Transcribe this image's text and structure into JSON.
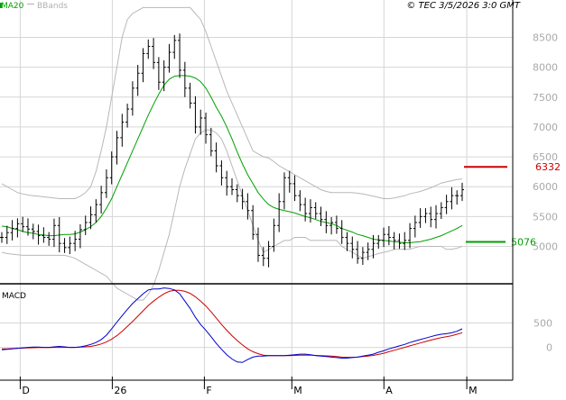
{
  "chart_data": [
    {
      "type": "line",
      "legend": [
        {
          "name": "MA20",
          "color": "#00a000"
        },
        {
          "name": "BBands",
          "color": "#b0b0b0"
        }
      ],
      "timestamp": "© TEC 3/5/2026 3:0 GMT",
      "x_ticks": [
        "D",
        "26",
        "F",
        "M",
        "A",
        "M"
      ],
      "y_ticks": [
        5000,
        5500,
        6000,
        6500,
        7000,
        7500,
        8000,
        8500
      ],
      "ylim": [
        4600,
        8900
      ],
      "grid": true,
      "series_style": "bar",
      "close": [
        5150,
        5230,
        5300,
        5380,
        5330,
        5290,
        5250,
        5180,
        5150,
        5120,
        5350,
        5050,
        4980,
        5050,
        5120,
        5280,
        5400,
        5530,
        5700,
        5900,
        6150,
        6500,
        6820,
        7080,
        7300,
        7650,
        7900,
        8230,
        8350,
        8080,
        7750,
        8000,
        8250,
        8450,
        7950,
        7650,
        7400,
        7000,
        7150,
        6870,
        6600,
        6350,
        6150,
        6000,
        5950,
        5850,
        5750,
        5600,
        5200,
        4850,
        4800,
        5000,
        5350,
        5750,
        6150,
        6050,
        5850,
        5700,
        5550,
        5650,
        5550,
        5450,
        5350,
        5400,
        5300,
        5150,
        5050,
        4950,
        4800,
        4900,
        4950,
        5050,
        5100,
        5200,
        5150,
        5100,
        5050,
        5100,
        5300,
        5400,
        5500,
        5550,
        5450,
        5550,
        5650,
        5750,
        5850,
        5850,
        5950
      ],
      "bbands_upper": [
        6050,
        6000,
        5950,
        5900,
        5880,
        5860,
        5850,
        5840,
        5830,
        5820,
        5810,
        5800,
        5800,
        5800,
        5800,
        5840,
        5900,
        6000,
        6250,
        6600,
        7000,
        7500,
        8000,
        8500,
        8800,
        8900,
        8950,
        9000,
        9000,
        9000,
        9000,
        9000,
        9000,
        9000,
        9000,
        9000,
        9000,
        8900,
        8800,
        8600,
        8350,
        8100,
        7850,
        7600,
        7400,
        7200,
        7000,
        6800,
        6600,
        6550,
        6500,
        6480,
        6420,
        6350,
        6300,
        6250,
        6200,
        6150,
        6100,
        6050,
        6000,
        5950,
        5920,
        5900,
        5900,
        5900,
        5900,
        5900,
        5890,
        5880,
        5860,
        5840,
        5820,
        5800,
        5800,
        5810,
        5830,
        5850,
        5880,
        5900,
        5920,
        5950,
        5980,
        6020,
        6060,
        6080,
        6100,
        6120,
        6130
      ],
      "bbands_lower": [
        4900,
        4880,
        4870,
        4860,
        4850,
        4850,
        4850,
        4850,
        4850,
        4850,
        4850,
        4850,
        4850,
        4830,
        4800,
        4750,
        4700,
        4650,
        4600,
        4550,
        4500,
        4400,
        4300,
        4250,
        4200,
        4150,
        4100,
        4100,
        4200,
        4350,
        4600,
        4900,
        5200,
        5600,
        6000,
        6300,
        6550,
        6800,
        6900,
        6950,
        6950,
        6900,
        6800,
        6600,
        6350,
        6100,
        5850,
        5600,
        5350,
        5100,
        4900,
        4950,
        5000,
        5050,
        5100,
        5100,
        5150,
        5150,
        5150,
        5100,
        5100,
        5100,
        5100,
        5100,
        5100,
        5000,
        4950,
        4900,
        4850,
        4800,
        4830,
        4850,
        4880,
        4900,
        4920,
        4950,
        4950,
        4950,
        4950,
        4980,
        5000,
        5000,
        5000,
        5000,
        5000,
        4950,
        4950,
        4970,
        5000
      ],
      "ma20": [
        5340,
        5330,
        5300,
        5280,
        5250,
        5230,
        5220,
        5200,
        5190,
        5180,
        5180,
        5190,
        5200,
        5200,
        5210,
        5240,
        5280,
        5330,
        5400,
        5500,
        5640,
        5800,
        6000,
        6200,
        6400,
        6600,
        6800,
        7000,
        7200,
        7380,
        7550,
        7700,
        7800,
        7850,
        7860,
        7860,
        7850,
        7820,
        7760,
        7650,
        7500,
        7330,
        7180,
        7000,
        6800,
        6580,
        6380,
        6200,
        6050,
        5900,
        5790,
        5700,
        5650,
        5620,
        5600,
        5580,
        5560,
        5530,
        5500,
        5480,
        5450,
        5420,
        5400,
        5380,
        5350,
        5300,
        5270,
        5240,
        5200,
        5180,
        5150,
        5120,
        5110,
        5100,
        5090,
        5080,
        5070,
        5060,
        5060,
        5070,
        5080,
        5100,
        5120,
        5150,
        5180,
        5220,
        5260,
        5300,
        5350
      ],
      "markers": [
        {
          "label": "6332",
          "value": 6332,
          "color": "#cc0000"
        },
        {
          "label": "5076",
          "value": 5076,
          "color": "#00a000"
        }
      ]
    },
    {
      "type": "line",
      "title": "MACD",
      "y_ticks": [
        0,
        500
      ],
      "ylim": [
        -600,
        1250
      ],
      "grid": true,
      "macd_line": [
        -50,
        -40,
        -30,
        -20,
        -10,
        0,
        5,
        5,
        0,
        0,
        10,
        20,
        10,
        0,
        0,
        10,
        30,
        60,
        100,
        160,
        250,
        380,
        520,
        650,
        780,
        900,
        1000,
        1100,
        1180,
        1200,
        1200,
        1220,
        1210,
        1180,
        1100,
        950,
        800,
        620,
        470,
        350,
        220,
        80,
        -40,
        -150,
        -240,
        -300,
        -310,
        -250,
        -200,
        -180,
        -180,
        -170,
        -170,
        -170,
        -170,
        -160,
        -150,
        -140,
        -140,
        -150,
        -170,
        -180,
        -190,
        -200,
        -210,
        -220,
        -220,
        -210,
        -200,
        -180,
        -160,
        -140,
        -100,
        -70,
        -30,
        0,
        30,
        60,
        100,
        130,
        160,
        190,
        220,
        250,
        270,
        280,
        300,
        330,
        380
      ],
      "signal_line": [
        -30,
        -30,
        -25,
        -20,
        -15,
        -10,
        -8,
        -5,
        -3,
        -2,
        0,
        0,
        0,
        0,
        0,
        5,
        10,
        20,
        40,
        70,
        110,
        170,
        240,
        330,
        430,
        530,
        640,
        750,
        860,
        950,
        1030,
        1100,
        1150,
        1170,
        1170,
        1150,
        1110,
        1040,
        950,
        850,
        730,
        600,
        470,
        350,
        240,
        140,
        50,
        -30,
        -90,
        -130,
        -160,
        -170,
        -170,
        -170,
        -170,
        -170,
        -165,
        -160,
        -160,
        -160,
        -165,
        -170,
        -175,
        -180,
        -190,
        -200,
        -205,
        -205,
        -200,
        -190,
        -180,
        -165,
        -145,
        -120,
        -90,
        -60,
        -30,
        0,
        30,
        60,
        90,
        120,
        150,
        175,
        200,
        220,
        240,
        270,
        300
      ]
    }
  ]
}
